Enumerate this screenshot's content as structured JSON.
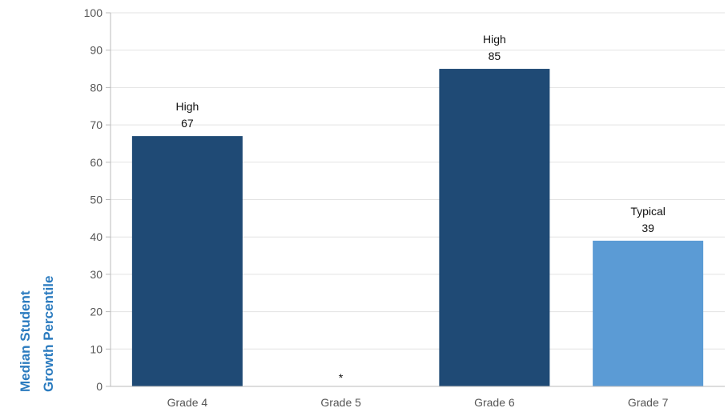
{
  "chart_data": {
    "type": "bar",
    "categories": [
      "Grade 4",
      "Grade 5",
      "Grade 6",
      "Grade 7"
    ],
    "values": [
      67,
      null,
      85,
      39
    ],
    "bar_labels": [
      "High",
      "",
      "High",
      "Typical"
    ],
    "missing_marker": "*",
    "bar_colors": [
      "#1f4a75",
      "#1f4a75",
      "#1f4a75",
      "#5b9bd5"
    ],
    "ylabel_lines": [
      "Median Student",
      "Growth Percentile"
    ],
    "ylim": [
      0,
      100
    ],
    "yticks": [
      0,
      10,
      20,
      30,
      40,
      50,
      60,
      70,
      80,
      90,
      100
    ],
    "grid": true
  },
  "colors": {
    "dark_bar": "#1f4a75",
    "light_bar": "#5b9bd5",
    "axis_title": "#2b7bbf",
    "grid": "#e3e3e3"
  }
}
